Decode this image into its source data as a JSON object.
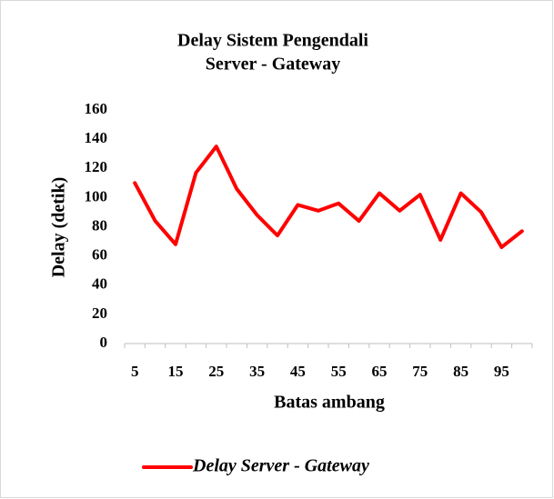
{
  "chart_data": {
    "type": "line",
    "title": [
      "Delay Sistem Pengendali",
      "Server - Gateway"
    ],
    "x_label": "Batas ambang",
    "y_label": "Delay (detik)",
    "categories": [
      "5",
      null,
      "15",
      null,
      "25",
      null,
      "35",
      null,
      "45",
      null,
      "55",
      null,
      "65",
      null,
      "75",
      null,
      "85",
      null,
      "95",
      null
    ],
    "series": [
      {
        "name": "Delay Server - Gateway",
        "color": "#ff0000",
        "values": [
          110,
          84,
          68,
          117,
          135,
          106,
          88,
          74,
          95,
          91,
          96,
          84,
          103,
          91,
          102,
          71,
          103,
          90,
          66,
          77
        ]
      }
    ],
    "ylim": [
      0,
      160
    ],
    "yticks": [
      0,
      20,
      40,
      60,
      80,
      100,
      120,
      140,
      160
    ],
    "grid": false,
    "legend": "bottom"
  }
}
